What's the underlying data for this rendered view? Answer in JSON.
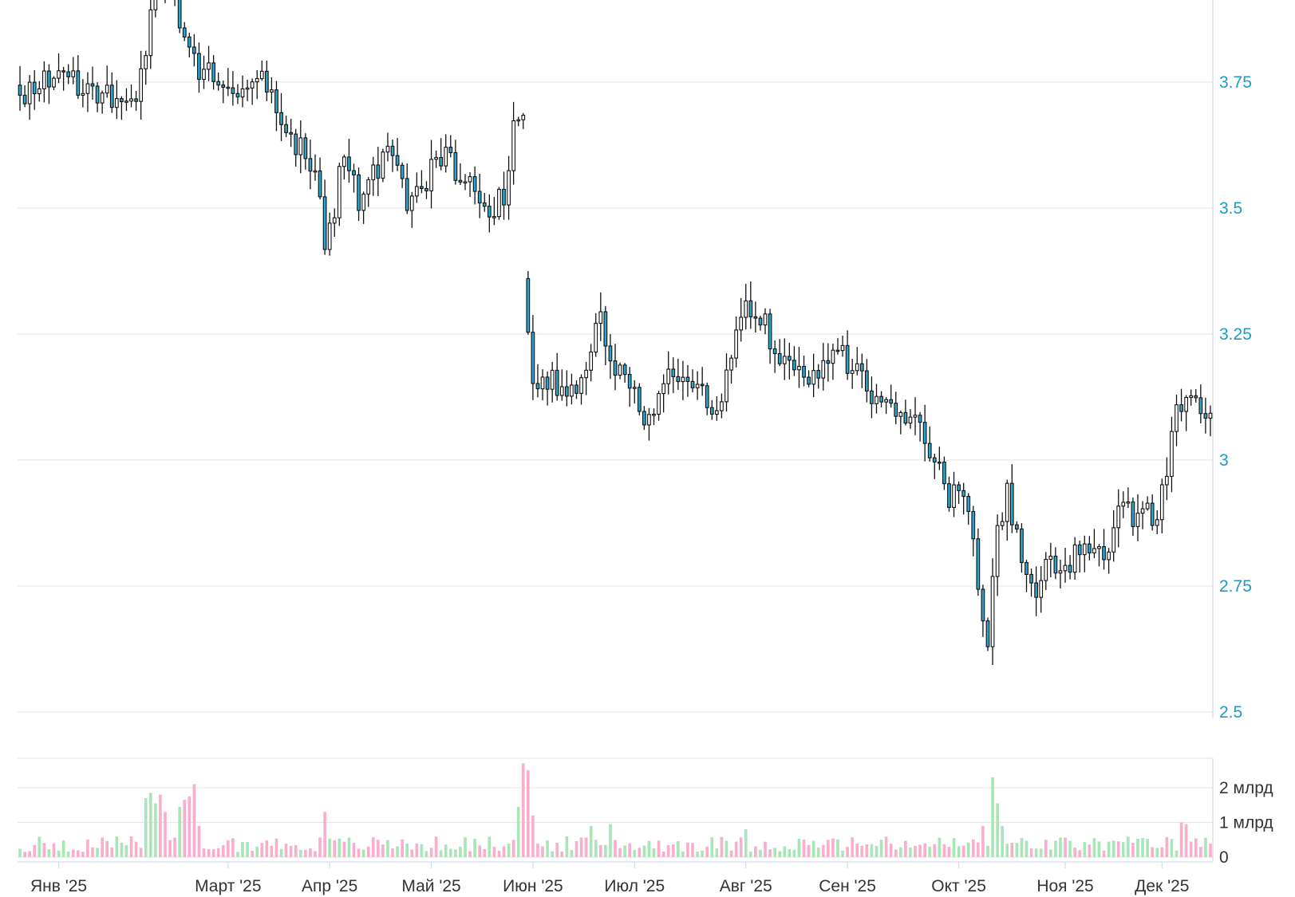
{
  "chart_data": {
    "type": "candlestick",
    "colors": {
      "up_body": "#ffffff",
      "down_body": "#2aa6cf",
      "wick": "#111111",
      "volume_up": "#a8e6b8",
      "volume_down": "#f9aecb",
      "price_tick": "#1f9ac4",
      "grid": "#e3e3e3"
    },
    "price_axis": {
      "position": "right",
      "ylim": [
        2.5,
        3.9
      ],
      "ticks": [
        {
          "value": 3.75,
          "label": "3.75"
        },
        {
          "value": 3.5,
          "label": "3.5"
        },
        {
          "value": 3.25,
          "label": "3.25"
        },
        {
          "value": 3.0,
          "label": "3"
        },
        {
          "value": 2.75,
          "label": "2.75"
        },
        {
          "value": 2.5,
          "label": "2.5"
        }
      ]
    },
    "volume_axis": {
      "position": "right",
      "ylim": [
        0,
        2.8
      ],
      "ticks": [
        {
          "value": 2,
          "label": "2 млрд"
        },
        {
          "value": 1,
          "label": "1 млрд"
        },
        {
          "value": 0,
          "label": "0"
        }
      ]
    },
    "x_axis": {
      "months": [
        "Янв '25",
        "Март '25",
        "Апр '25",
        "Май '25",
        "Июн '25",
        "Июл '25",
        "Авг '25",
        "Сен '25",
        "Окт '25",
        "Ноя '25",
        "Дек '25"
      ],
      "month_start_index": [
        8,
        43,
        64,
        85,
        106,
        127,
        150,
        171,
        194,
        216,
        236
      ]
    },
    "anchors": [
      [
        0,
        3.72
      ],
      [
        5,
        3.75
      ],
      [
        10,
        3.76
      ],
      [
        15,
        3.72
      ],
      [
        20,
        3.72
      ],
      [
        24,
        3.73
      ],
      [
        26,
        3.82
      ],
      [
        28,
        3.92
      ],
      [
        32,
        3.92
      ],
      [
        35,
        3.8
      ],
      [
        38,
        3.77
      ],
      [
        42,
        3.76
      ],
      [
        46,
        3.74
      ],
      [
        49,
        3.77
      ],
      [
        52,
        3.73
      ],
      [
        55,
        3.65
      ],
      [
        58,
        3.62
      ],
      [
        61,
        3.58
      ],
      [
        63,
        3.43
      ],
      [
        65,
        3.5
      ],
      [
        67,
        3.62
      ],
      [
        70,
        3.52
      ],
      [
        73,
        3.57
      ],
      [
        77,
        3.61
      ],
      [
        80,
        3.51
      ],
      [
        83,
        3.53
      ],
      [
        86,
        3.61
      ],
      [
        89,
        3.59
      ],
      [
        92,
        3.55
      ],
      [
        95,
        3.53
      ],
      [
        97,
        3.48
      ],
      [
        100,
        3.53
      ],
      [
        102,
        3.65
      ],
      [
        104,
        3.68
      ],
      [
        104.5,
        3.33
      ],
      [
        106,
        3.16
      ],
      [
        109,
        3.16
      ],
      [
        112,
        3.14
      ],
      [
        115,
        3.14
      ],
      [
        118,
        3.22
      ],
      [
        120,
        3.28
      ],
      [
        122,
        3.19
      ],
      [
        125,
        3.16
      ],
      [
        127,
        3.12
      ],
      [
        129,
        3.06
      ],
      [
        131,
        3.08
      ],
      [
        133,
        3.15
      ],
      [
        135,
        3.18
      ],
      [
        138,
        3.17
      ],
      [
        141,
        3.14
      ],
      [
        144,
        3.1
      ],
      [
        147,
        3.21
      ],
      [
        149,
        3.29
      ],
      [
        151,
        3.3
      ],
      [
        154,
        3.27
      ],
      [
        157,
        3.19
      ],
      [
        160,
        3.17
      ],
      [
        163,
        3.16
      ],
      [
        166,
        3.18
      ],
      [
        169,
        3.21
      ],
      [
        172,
        3.19
      ],
      [
        175,
        3.14
      ],
      [
        178,
        3.12
      ],
      [
        181,
        3.09
      ],
      [
        184,
        3.08
      ],
      [
        186,
        3.07
      ],
      [
        189,
        3.0
      ],
      [
        192,
        2.93
      ],
      [
        195,
        2.95
      ],
      [
        197,
        2.82
      ],
      [
        199,
        2.68
      ],
      [
        200,
        2.62
      ],
      [
        202,
        2.87
      ],
      [
        204,
        2.93
      ],
      [
        206,
        2.84
      ],
      [
        208,
        2.76
      ],
      [
        210,
        2.72
      ],
      [
        212,
        2.8
      ],
      [
        214,
        2.77
      ],
      [
        216,
        2.78
      ],
      [
        218,
        2.82
      ],
      [
        220,
        2.85
      ],
      [
        223,
        2.82
      ],
      [
        225,
        2.81
      ],
      [
        227,
        2.91
      ],
      [
        230,
        2.89
      ],
      [
        233,
        2.89
      ],
      [
        235,
        2.9
      ],
      [
        237,
        2.97
      ],
      [
        239,
        3.1
      ],
      [
        241,
        3.12
      ],
      [
        244,
        3.11
      ],
      [
        246,
        3.09
      ]
    ],
    "total_bars": 247,
    "volume_spikes": [
      [
        26,
        1.7,
        "up"
      ],
      [
        27,
        1.85,
        "up"
      ],
      [
        28,
        1.55,
        "up"
      ],
      [
        29,
        1.8,
        "down"
      ],
      [
        30,
        1.3,
        "down"
      ],
      [
        33,
        1.45,
        "up"
      ],
      [
        34,
        1.65,
        "down"
      ],
      [
        35,
        1.75,
        "down"
      ],
      [
        36,
        2.1,
        "down"
      ],
      [
        37,
        0.9,
        "down"
      ],
      [
        63,
        1.3,
        "down"
      ],
      [
        103,
        1.45,
        "up"
      ],
      [
        104,
        2.7,
        "down"
      ],
      [
        105,
        2.5,
        "down"
      ],
      [
        106,
        1.2,
        "down"
      ],
      [
        118,
        0.9,
        "up"
      ],
      [
        122,
        0.95,
        "up"
      ],
      [
        150,
        0.8,
        "up"
      ],
      [
        199,
        0.9,
        "down"
      ],
      [
        201,
        2.3,
        "up"
      ],
      [
        202,
        1.55,
        "up"
      ],
      [
        203,
        0.9,
        "up"
      ],
      [
        240,
        1.0,
        "down"
      ],
      [
        241,
        0.95,
        "down"
      ]
    ]
  }
}
